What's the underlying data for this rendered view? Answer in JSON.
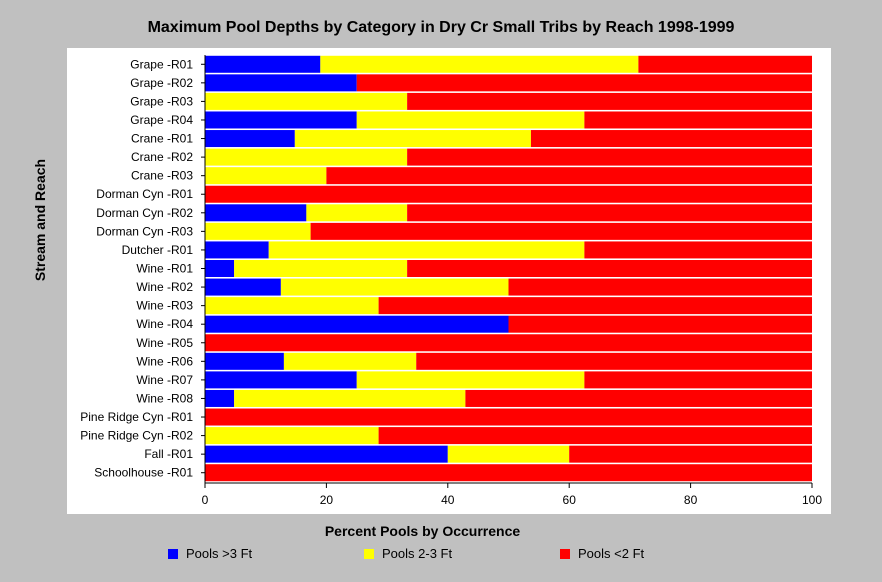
{
  "chart_data": {
    "type": "bar",
    "orientation": "horizontal",
    "stacked": true,
    "title": "Maximum Pool Depths by Category in Dry Cr Small Tribs by Reach 1998-1999",
    "xlabel": "Percent Pools by Occurrence",
    "ylabel": "Stream and Reach",
    "xlim": [
      0,
      100
    ],
    "xticks": [
      0,
      20,
      40,
      60,
      80,
      100
    ],
    "legend_position": "bottom",
    "grid": false,
    "categories": [
      "Grape -R01",
      "Grape -R02",
      "Grape -R03",
      "Grape -R04",
      "Crane -R01",
      "Crane -R02",
      "Crane -R03",
      "Dorman Cyn -R01",
      "Dorman Cyn -R02",
      "Dorman Cyn -R03",
      "Dutcher -R01",
      "Wine -R01",
      "Wine -R02",
      "Wine -R03",
      "Wine -R04",
      "Wine -R05",
      "Wine -R06",
      "Wine -R07",
      "Wine -R08",
      "Pine Ridge Cyn -R01",
      "Pine Ridge Cyn -R02",
      "Fall -R01",
      "Schoolhouse -R01"
    ],
    "series": [
      {
        "name": "Pools >3 Ft",
        "color": "#0000ff",
        "values": [
          19.0,
          25.0,
          0,
          25.0,
          14.8,
          0,
          0,
          0,
          16.7,
          0,
          10.5,
          4.8,
          12.5,
          0,
          50.0,
          0,
          13.0,
          25.0,
          4.8,
          0,
          0,
          40.0,
          0
        ]
      },
      {
        "name": "Pools 2-3 Ft",
        "color": "#ffff00",
        "values": [
          52.4,
          0,
          33.3,
          37.5,
          38.9,
          33.3,
          20.0,
          0,
          16.6,
          17.4,
          52.0,
          28.5,
          37.5,
          28.6,
          0,
          0,
          21.8,
          37.5,
          38.1,
          0,
          28.6,
          20.0,
          0
        ]
      },
      {
        "name": "Pools <2 Ft",
        "color": "#ff0000",
        "values": [
          28.6,
          75.0,
          66.7,
          37.5,
          46.3,
          66.7,
          80.0,
          100,
          66.7,
          82.6,
          37.5,
          66.7,
          50.0,
          71.4,
          50.0,
          100,
          65.2,
          37.5,
          57.1,
          100,
          71.4,
          40.0,
          100
        ]
      }
    ]
  }
}
